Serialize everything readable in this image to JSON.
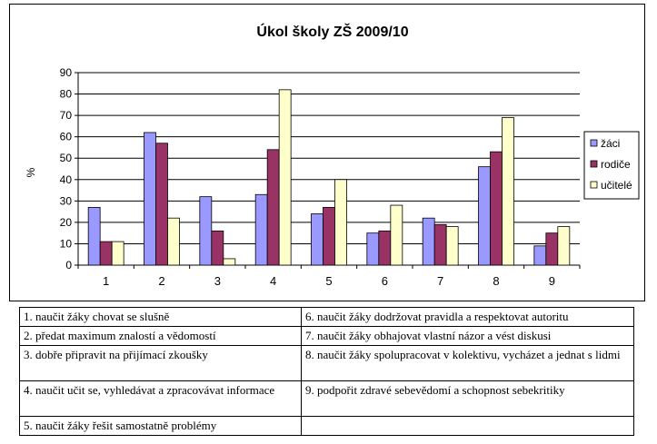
{
  "chart_data": {
    "type": "bar",
    "title": "Úkol školy ZŠ 2009/10",
    "ylabel": "%",
    "xlabel": "",
    "ylim": [
      0,
      90
    ],
    "yticks": [
      "0",
      "10",
      "20",
      "30",
      "40",
      "50",
      "60",
      "70",
      "80",
      "90"
    ],
    "grid": true,
    "legend_position": "right",
    "categories": [
      "1",
      "2",
      "3",
      "4",
      "5",
      "6",
      "7",
      "8",
      "9"
    ],
    "series": [
      {
        "name": "žáci",
        "color": "#9999ff",
        "values": [
          27,
          62,
          32,
          33,
          24,
          15,
          22,
          46,
          9
        ]
      },
      {
        "name": "rodiče",
        "color": "#993366",
        "values": [
          11,
          57,
          16,
          54,
          27,
          16,
          19,
          53,
          15
        ]
      },
      {
        "name": "učitelé",
        "color": "#ffffcc",
        "values": [
          11,
          22,
          3,
          82,
          40,
          28,
          18,
          69,
          18
        ]
      }
    ]
  },
  "legend_table": {
    "rows": [
      [
        "1. naučit žáky chovat se slušně",
        "6. naučit žáky dodržovat pravidla a respektovat autoritu"
      ],
      [
        "2. předat maximum znalostí a vědomostí",
        "7. naučit žáky obhajovat vlastní názor a vést diskusi"
      ],
      [
        "3. dobře připravit na přijímací zkoušky",
        "8. naučit žáky spolupracovat v kolektivu, vycházet a jednat s lidmi"
      ],
      [
        "4. naučit učit se, vyhledávat a zpracovávat informace",
        "9. podpořit zdravé sebevědomí a schopnost sebekritiky"
      ],
      [
        "5. naučit žáky řešit samostatně problémy",
        ""
      ]
    ]
  }
}
